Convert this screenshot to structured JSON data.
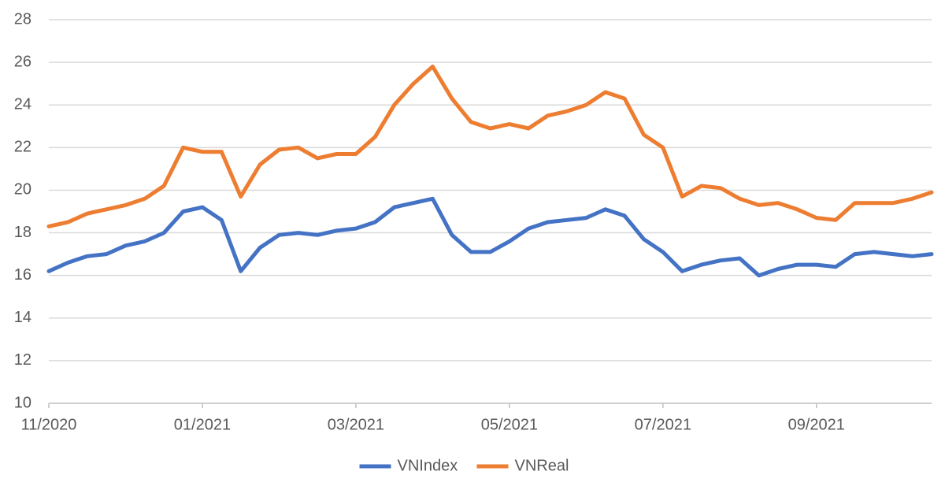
{
  "chart_data": {
    "type": "line",
    "categories": [
      "11/2020",
      null,
      null,
      null,
      null,
      null,
      null,
      null,
      "01/2021",
      null,
      null,
      null,
      null,
      null,
      null,
      null,
      "03/2021",
      null,
      null,
      null,
      null,
      null,
      null,
      null,
      "05/2021",
      null,
      null,
      null,
      null,
      null,
      null,
      null,
      "07/2021",
      null,
      null,
      null,
      null,
      null,
      null,
      null,
      "09/2021",
      null,
      null,
      null,
      null,
      null,
      null
    ],
    "series": [
      {
        "name": "VNIndex",
        "color": "#4472c4",
        "values": [
          16.2,
          16.6,
          16.9,
          17.0,
          17.4,
          17.6,
          18.0,
          19.0,
          19.2,
          18.6,
          16.2,
          17.3,
          17.9,
          18.0,
          17.9,
          18.1,
          18.2,
          18.5,
          19.2,
          19.4,
          19.6,
          17.9,
          17.1,
          17.1,
          17.6,
          18.2,
          18.5,
          18.6,
          18.7,
          19.1,
          18.8,
          17.7,
          17.1,
          16.2,
          16.5,
          16.7,
          16.8,
          16.0,
          16.3,
          16.5,
          16.5,
          16.4,
          17.0,
          17.1,
          17.0,
          16.9,
          17.0
        ]
      },
      {
        "name": "VNReal",
        "color": "#ed7d31",
        "values": [
          18.3,
          18.5,
          18.9,
          19.1,
          19.3,
          19.6,
          20.2,
          22.0,
          21.8,
          21.8,
          19.7,
          21.2,
          21.9,
          22.0,
          21.5,
          21.7,
          21.7,
          22.5,
          24.0,
          25.0,
          25.8,
          24.3,
          23.2,
          22.9,
          23.1,
          22.9,
          23.5,
          23.7,
          24.0,
          24.6,
          24.3,
          22.6,
          22.0,
          19.7,
          20.2,
          20.1,
          19.6,
          19.3,
          19.4,
          19.1,
          18.7,
          18.6,
          19.4,
          19.4,
          19.4,
          19.6,
          19.9
        ]
      }
    ],
    "ylim": [
      10,
      28
    ],
    "yticks": [
      10,
      12,
      14,
      16,
      18,
      20,
      22,
      24,
      26,
      28
    ],
    "grid": true,
    "legend": "bottom"
  }
}
